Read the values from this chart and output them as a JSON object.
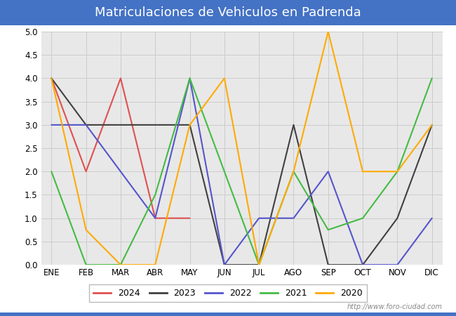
{
  "title": "Matriculaciones de Vehiculos en Padrenda",
  "title_color": "#ffffff",
  "title_bg_color": "#4472c4",
  "months": [
    "ENE",
    "FEB",
    "MAR",
    "ABR",
    "MAY",
    "JUN",
    "JUL",
    "AGO",
    "SEP",
    "OCT",
    "NOV",
    "DIC"
  ],
  "series": [
    {
      "label": "2024",
      "color": "#e05050",
      "data": [
        4,
        2,
        4,
        1,
        1,
        null,
        null,
        null,
        null,
        null,
        null,
        null
      ]
    },
    {
      "label": "2023",
      "color": "#404040",
      "data": [
        4,
        3,
        3,
        3,
        3,
        0,
        0,
        3,
        0,
        0,
        1,
        3
      ]
    },
    {
      "label": "2022",
      "color": "#5555cc",
      "data": [
        3,
        3,
        2,
        1,
        4,
        0,
        1,
        1,
        2,
        0,
        0,
        1
      ]
    },
    {
      "label": "2021",
      "color": "#44bb44",
      "data": [
        2,
        0,
        0,
        1.5,
        4,
        2,
        0,
        2,
        0.75,
        1,
        2,
        4
      ]
    },
    {
      "label": "2020",
      "color": "#ffaa00",
      "data": [
        4,
        0.75,
        0,
        0,
        3,
        4,
        0,
        2,
        5,
        2,
        2,
        3
      ]
    }
  ],
  "ylim": [
    0,
    5.0
  ],
  "yticks": [
    0.0,
    0.5,
    1.0,
    1.5,
    2.0,
    2.5,
    3.0,
    3.5,
    4.0,
    4.5,
    5.0
  ],
  "grid_color": "#cccccc",
  "plot_bg_color": "#e8e8e8",
  "fig_bg_color": "#ffffff",
  "watermark": "http://www.foro-ciudad.com",
  "linewidth": 1.5,
  "title_fontsize": 13,
  "tick_fontsize": 8.5,
  "legend_fontsize": 9,
  "watermark_fontsize": 7
}
